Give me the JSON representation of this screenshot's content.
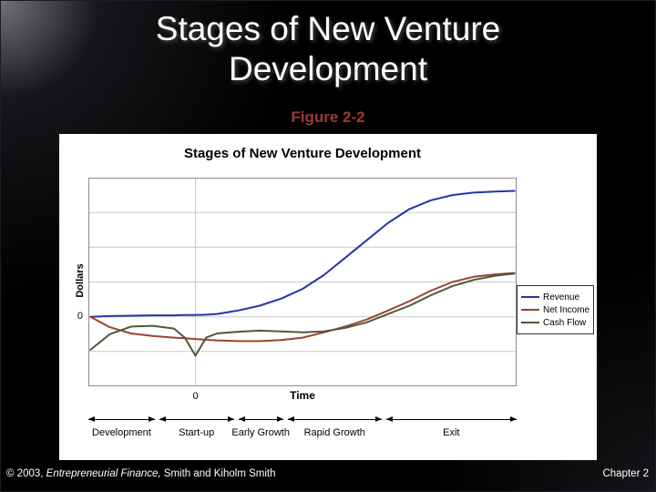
{
  "slide": {
    "title_line1": "Stages of New Venture",
    "title_line2": "Development",
    "subtitle": "Figure 2-2",
    "footer": {
      "copyright": "© 2003, ",
      "book_title": "Entrepreneurial Finance,",
      "authors": " Smith and Kiholm Smith",
      "chapter": "Chapter 2"
    }
  },
  "colors": {
    "subtitle-red": "#9e3a32",
    "title-white": "#ffffff",
    "grid": "#c9c9c9",
    "plot-border": "#8c8c8c"
  },
  "chart_data": {
    "type": "line",
    "title": "Stages of New Venture Development",
    "xlabel": "Time",
    "ylabel": "Dollars",
    "xlim": [
      -2.5,
      7.5
    ],
    "ylim": [
      -2,
      4
    ],
    "grid": "horizontal gridlines every 1 unit; one vertical gridline at x=0",
    "legend_position": "right",
    "x_ticks": [
      {
        "value": 0,
        "label": "0"
      }
    ],
    "y_ticks": [
      {
        "value": 0,
        "label": "0"
      }
    ],
    "x": [
      -2.45,
      -2,
      -1.5,
      -1,
      -0.5,
      -0.25,
      0,
      0.25,
      0.5,
      1,
      1.5,
      2,
      2.5,
      3,
      3.5,
      4,
      4.5,
      5,
      5.5,
      6,
      6.5,
      7,
      7.45
    ],
    "series": [
      {
        "name": "Revenue",
        "color": "#2832a8",
        "values": [
          0,
          0.02,
          0.03,
          0.04,
          0.04,
          0.05,
          0.05,
          0.06,
          0.08,
          0.18,
          0.32,
          0.52,
          0.8,
          1.2,
          1.7,
          2.2,
          2.7,
          3.1,
          3.35,
          3.5,
          3.57,
          3.6,
          3.62
        ]
      },
      {
        "name": "Net Income",
        "color": "#9a452e",
        "values": [
          0,
          -0.3,
          -0.48,
          -0.55,
          -0.6,
          -0.62,
          -0.64,
          -0.66,
          -0.68,
          -0.7,
          -0.7,
          -0.67,
          -0.6,
          -0.45,
          -0.28,
          -0.08,
          0.18,
          0.45,
          0.75,
          1.0,
          1.15,
          1.22,
          1.26
        ]
      },
      {
        "name": "Cash Flow",
        "color": "#4d5a36",
        "values": [
          -0.95,
          -0.5,
          -0.28,
          -0.26,
          -0.34,
          -0.6,
          -1.12,
          -0.6,
          -0.48,
          -0.43,
          -0.4,
          -0.42,
          -0.45,
          -0.42,
          -0.32,
          -0.16,
          0.08,
          0.32,
          0.62,
          0.88,
          1.06,
          1.18,
          1.24
        ]
      }
    ],
    "stages": [
      {
        "label": "Development",
        "span": [
          0.0,
          0.155
        ]
      },
      {
        "label": "Start-up",
        "span": [
          0.165,
          0.34
        ]
      },
      {
        "label": "Early Growth",
        "span": [
          0.35,
          0.455
        ]
      },
      {
        "label": "Rapid Growth",
        "span": [
          0.465,
          0.685
        ]
      },
      {
        "label": "Exit",
        "span": [
          0.695,
          1.0
        ]
      }
    ]
  }
}
